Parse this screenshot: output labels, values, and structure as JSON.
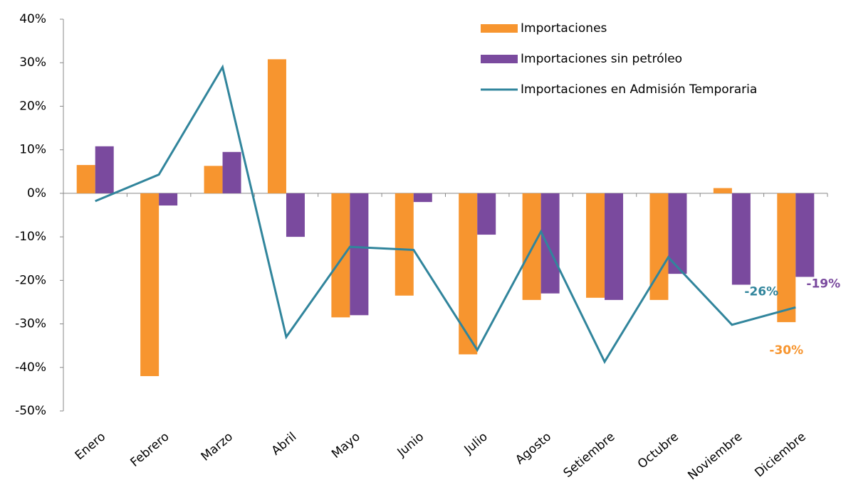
{
  "chart_data": {
    "type": "bar",
    "categories": [
      "Enero",
      "Febrero",
      "Marzo",
      "Abril",
      "Mayo",
      "Junio",
      "Julio",
      "Agosto",
      "Setiembre",
      "Octubre",
      "Noviembre",
      "Diciembre"
    ],
    "series": [
      {
        "name": "Importaciones",
        "type": "bar",
        "color": "#f7952f",
        "values": [
          6.5,
          -42,
          6.3,
          30.8,
          -28.5,
          -23.5,
          -37,
          -24.5,
          -24,
          -24.5,
          1.2,
          -29.6
        ],
        "value_labels": [
          null,
          null,
          null,
          null,
          null,
          null,
          null,
          null,
          null,
          null,
          null,
          "-30%"
        ]
      },
      {
        "name": "Importaciones sin petróleo",
        "type": "bar",
        "color": "#7a4a9e",
        "values": [
          10.8,
          -2.8,
          9.5,
          -10,
          -28,
          -2,
          -9.5,
          -23,
          -24.5,
          -18.5,
          -21,
          -19.2
        ],
        "value_labels": [
          null,
          null,
          null,
          null,
          null,
          null,
          null,
          null,
          null,
          null,
          null,
          "-19%"
        ]
      },
      {
        "name": "Importaciones en Admisión Temporaria",
        "type": "line",
        "color": "#31859c",
        "values": [
          -1.8,
          4.3,
          29,
          -33,
          -12.3,
          -13,
          -36,
          -8.8,
          -38.7,
          -14.7,
          -30.2,
          -26.2
        ],
        "value_labels": [
          null,
          null,
          null,
          null,
          null,
          null,
          null,
          null,
          null,
          null,
          null,
          "-26%"
        ]
      }
    ],
    "ylim": [
      -50,
      40
    ],
    "yticks": [
      {
        "value": -50,
        "label": "-50%"
      },
      {
        "value": -40,
        "label": "-40%"
      },
      {
        "value": -30,
        "label": "-30%"
      },
      {
        "value": -20,
        "label": "-20%"
      },
      {
        "value": -10,
        "label": "-10%"
      },
      {
        "value": 0,
        "label": "0%"
      },
      {
        "value": 10,
        "label": "10%"
      },
      {
        "value": 20,
        "label": "20%"
      },
      {
        "value": 30,
        "label": "30%"
      },
      {
        "value": 40,
        "label": "40%"
      }
    ],
    "grid": false,
    "legend": "top-right"
  }
}
